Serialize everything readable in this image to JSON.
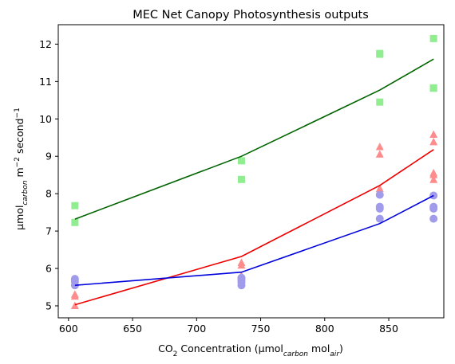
{
  "chart_data": {
    "type": "scatter",
    "title": "MEC Net Canopy Photosynthesis outputs",
    "xlabel": {
      "prefix": "CO",
      "prefix_sub": "2",
      "main": " Concentration (µmol",
      "sub1": "carbon",
      "mid": " mol",
      "sub2": "air",
      "suffix": ")"
    },
    "ylabel": {
      "prefix": "µmol",
      "sub": "carbon",
      "mid": " m",
      "sup1": "−2",
      "mid2": " second",
      "sup2": "−1"
    },
    "xlim": [
      592,
      893
    ],
    "ylim": [
      4.68,
      12.52
    ],
    "xticks": [
      600,
      650,
      700,
      750,
      800,
      850
    ],
    "yticks": [
      5,
      6,
      7,
      8,
      9,
      10,
      11,
      12
    ],
    "grid": false,
    "series": [
      {
        "marker": "square",
        "point_color": "#90EE90",
        "line_color": "#006400",
        "points": [
          [
            605,
            7.68
          ],
          [
            605,
            7.23
          ],
          [
            735,
            8.88
          ],
          [
            735,
            8.38
          ],
          [
            843,
            11.75
          ],
          [
            843,
            11.73
          ],
          [
            843,
            10.45
          ],
          [
            885,
            12.15
          ],
          [
            885,
            10.83
          ],
          [
            885,
            10.82
          ]
        ],
        "line": [
          [
            605,
            7.32
          ],
          [
            735,
            9.0
          ],
          [
            843,
            10.77
          ],
          [
            885,
            11.6
          ]
        ]
      },
      {
        "marker": "triangle",
        "point_color": "#FF8C8C",
        "line_color": "#EE0000",
        "points": [
          [
            605,
            5.3
          ],
          [
            605,
            5.25
          ],
          [
            605,
            5.0
          ],
          [
            735,
            6.15
          ],
          [
            735,
            6.08
          ],
          [
            735,
            5.8
          ],
          [
            735,
            5.75
          ],
          [
            843,
            9.25
          ],
          [
            843,
            9.05
          ],
          [
            843,
            8.13
          ],
          [
            843,
            8.05
          ],
          [
            885,
            9.58
          ],
          [
            885,
            9.38
          ],
          [
            885,
            8.55
          ],
          [
            885,
            8.5
          ],
          [
            885,
            8.37
          ]
        ],
        "line": [
          [
            605,
            5.03
          ],
          [
            735,
            6.32
          ],
          [
            843,
            8.22
          ],
          [
            885,
            9.18
          ]
        ]
      },
      {
        "marker": "circle",
        "point_color": "#A09BEA",
        "line_color": "#0000DD",
        "points": [
          [
            605,
            5.72
          ],
          [
            605,
            5.65
          ],
          [
            605,
            5.55
          ],
          [
            735,
            5.75
          ],
          [
            735,
            5.7
          ],
          [
            735,
            5.63
          ],
          [
            735,
            5.55
          ],
          [
            843,
            7.97
          ],
          [
            843,
            7.65
          ],
          [
            843,
            7.6
          ],
          [
            843,
            7.33
          ],
          [
            885,
            7.95
          ],
          [
            885,
            7.65
          ],
          [
            885,
            7.6
          ],
          [
            885,
            7.33
          ]
        ],
        "line": [
          [
            605,
            5.55
          ],
          [
            735,
            5.9
          ],
          [
            843,
            7.2
          ],
          [
            885,
            7.95
          ]
        ]
      }
    ]
  }
}
